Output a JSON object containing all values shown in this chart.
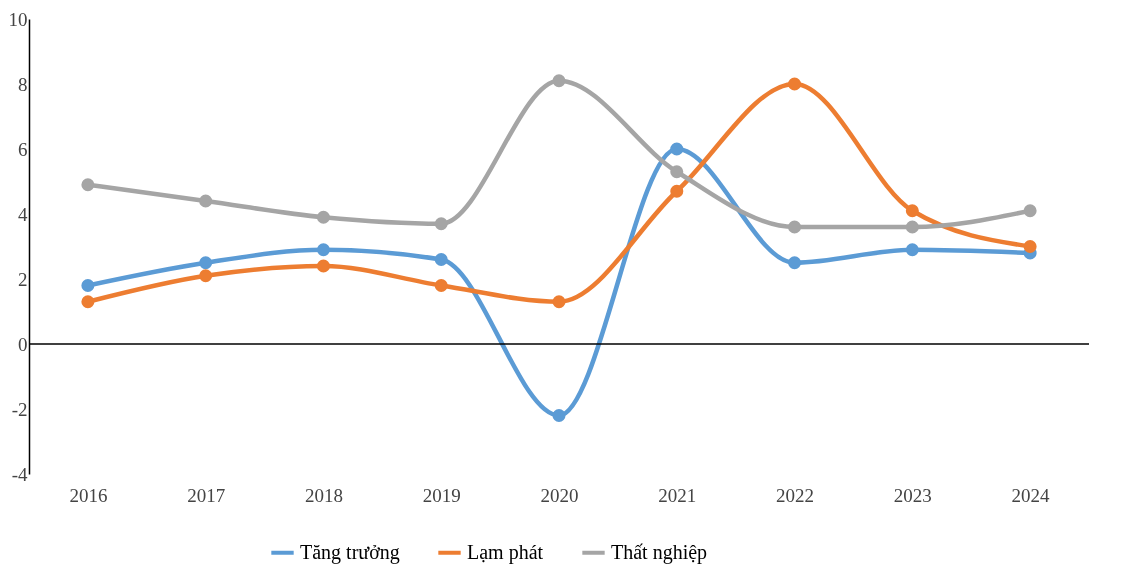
{
  "chart_data": {
    "type": "line",
    "categories": [
      "2016",
      "2017",
      "2018",
      "2019",
      "2020",
      "2021",
      "2022",
      "2023",
      "2024"
    ],
    "series": [
      {
        "name": "Tăng trưởng",
        "color": "#5b9bd5",
        "values": [
          1.8,
          2.5,
          2.9,
          2.6,
          -2.2,
          6.0,
          2.5,
          2.9,
          2.8
        ]
      },
      {
        "name": "Lạm phát",
        "color": "#ed7d31",
        "values": [
          1.3,
          2.1,
          2.4,
          1.8,
          1.3,
          4.7,
          8.0,
          4.1,
          3.0
        ]
      },
      {
        "name": "Thất nghiệp",
        "color": "#a5a5a5",
        "values": [
          4.9,
          4.4,
          3.9,
          3.7,
          8.1,
          5.3,
          3.6,
          3.6,
          4.1
        ]
      }
    ],
    "ylim": [
      -4,
      10
    ],
    "yticks": [
      -4,
      -2,
      0,
      2,
      4,
      6,
      8,
      10
    ],
    "grid": false,
    "legend": "bottom",
    "marker": "circle",
    "line_style": "solid",
    "ref_lines": [
      {
        "axis": "y",
        "value": 0,
        "label": null,
        "color": "#000000"
      }
    ]
  }
}
